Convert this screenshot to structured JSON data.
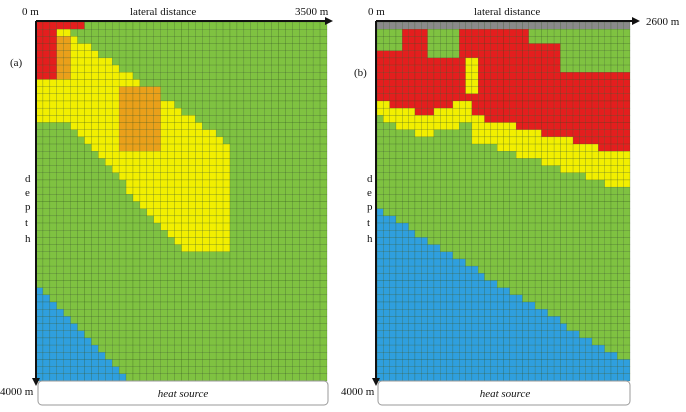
{
  "panel_a": {
    "tag": "(a)",
    "origin_label": "0 m",
    "lateral_title": "lateral distance",
    "lateral_max": "3500 m",
    "depth_title": [
      "d",
      "e",
      "p",
      "t",
      "h"
    ],
    "depth_max": "4000 m",
    "source_label": "heat source"
  },
  "panel_b": {
    "tag": "(b)",
    "origin_label": "0 m",
    "lateral_title": "lateral distance",
    "lateral_max": "2600 m",
    "depth_title": [
      "d",
      "e",
      "p",
      "t",
      "h"
    ],
    "depth_max": "4000 m",
    "source_label": "heat source"
  },
  "colors": {
    "green": "#7fc241",
    "yellow": "#f2ef00",
    "orange": "#eaa01a",
    "red": "#e41e1e",
    "blue": "#2f9fde",
    "header": "#8a8a8a",
    "gridline": "#2a4a1a"
  }
}
